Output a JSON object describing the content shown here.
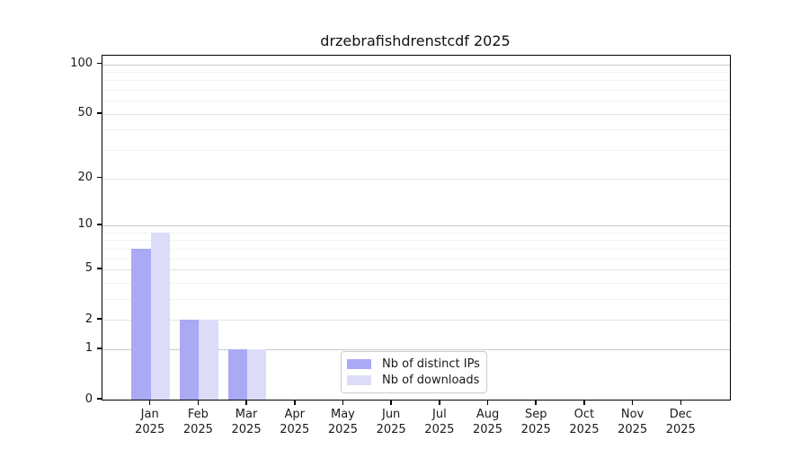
{
  "chart_data": {
    "type": "bar",
    "title": "drzebrafishdrenstcdf 2025",
    "categories": [
      "Jan",
      "Feb",
      "Mar",
      "Apr",
      "May",
      "Jun",
      "Jul",
      "Aug",
      "Sep",
      "Oct",
      "Nov",
      "Dec"
    ],
    "category_year": "2025",
    "series": [
      {
        "name": "Nb of distinct IPs",
        "color": "#a9a9f4",
        "values": [
          7,
          2,
          1,
          0,
          0,
          0,
          0,
          0,
          0,
          0,
          0,
          0
        ]
      },
      {
        "name": "Nb of downloads",
        "color": "#dcdcf9",
        "values": [
          9,
          2,
          1,
          0,
          0,
          0,
          0,
          0,
          0,
          0,
          0,
          0
        ]
      }
    ],
    "y_scale": "log1p",
    "ylim": [
      0,
      113
    ],
    "y_major_ticks": [
      0,
      1,
      2,
      5,
      10,
      20,
      50,
      100
    ],
    "y_decade_gridlines": [
      1,
      10,
      100
    ],
    "y_minor_gridlines": [
      3,
      4,
      6,
      7,
      8,
      9,
      30,
      40,
      60,
      70,
      80,
      90
    ],
    "grid": "horizontal",
    "legend_position": "inside-bottom-center"
  },
  "colors": {
    "axis": "#000000",
    "text": "#1a1a1a",
    "decade_grid": "#c9c9c9",
    "labeled_grid": "#e4e4e4",
    "minor_grid": "#f2f2f2",
    "legend_border": "#cccccc",
    "background": "#ffffff"
  }
}
